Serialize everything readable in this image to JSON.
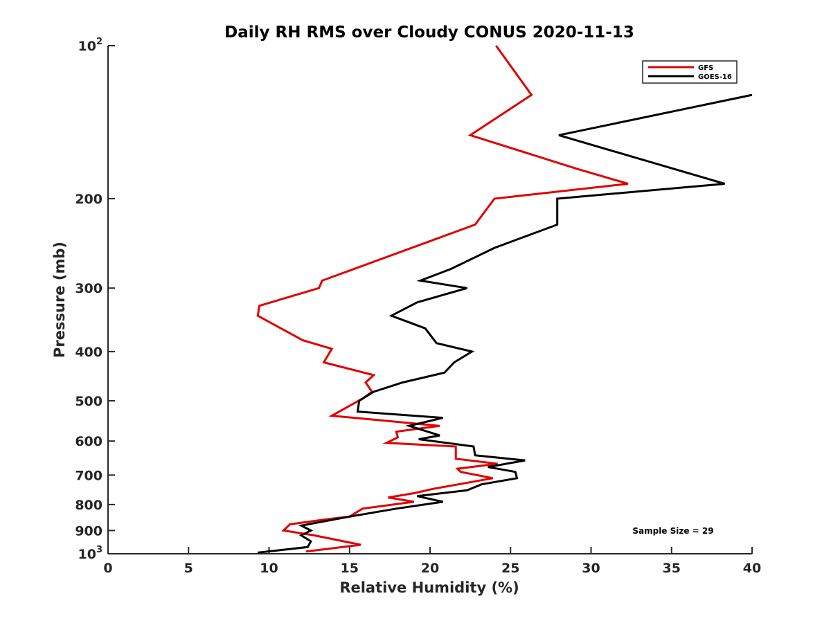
{
  "chart_data": {
    "type": "line",
    "title": "Daily RH RMS over Cloudy CONUS 2020-11-13",
    "xlabel": "Relative Humidity (%)",
    "ylabel": "Pressure (mb)",
    "xlim": [
      0,
      40
    ],
    "ylim": [
      100,
      1000
    ],
    "y_scale": "log",
    "y_reversed": true,
    "grid": false,
    "legend_position": "top-right",
    "x_ticks": [
      {
        "value": 0,
        "label": "0"
      },
      {
        "value": 5,
        "label": "5"
      },
      {
        "value": 10,
        "label": "10"
      },
      {
        "value": 15,
        "label": "15"
      },
      {
        "value": 20,
        "label": "20"
      },
      {
        "value": 25,
        "label": "25"
      },
      {
        "value": 30,
        "label": "30"
      },
      {
        "value": 35,
        "label": "35"
      },
      {
        "value": 40,
        "label": "40"
      }
    ],
    "y_ticks": [
      {
        "value": 100,
        "label": "10",
        "sup": "2"
      },
      {
        "value": 200,
        "label": "200",
        "sup": ""
      },
      {
        "value": 300,
        "label": "300",
        "sup": ""
      },
      {
        "value": 400,
        "label": "400",
        "sup": ""
      },
      {
        "value": 500,
        "label": "500",
        "sup": ""
      },
      {
        "value": 600,
        "label": "600",
        "sup": ""
      },
      {
        "value": 700,
        "label": "700",
        "sup": ""
      },
      {
        "value": 800,
        "label": "800",
        "sup": ""
      },
      {
        "value": 900,
        "label": "900",
        "sup": ""
      },
      {
        "value": 1000,
        "label": "10",
        "sup": "3"
      }
    ],
    "series": [
      {
        "name": "GFS",
        "color": "#e00000",
        "points": [
          [
            24.1,
            100
          ],
          [
            26.3,
            125
          ],
          [
            22.5,
            150
          ],
          [
            29.2,
            175
          ],
          [
            32.3,
            187
          ],
          [
            24.0,
            200
          ],
          [
            22.8,
            225
          ],
          [
            13.3,
            290
          ],
          [
            13.1,
            300
          ],
          [
            9.4,
            325
          ],
          [
            9.3,
            340
          ],
          [
            12.1,
            380
          ],
          [
            13.9,
            395
          ],
          [
            13.4,
            420
          ],
          [
            16.5,
            445
          ],
          [
            16.0,
            460
          ],
          [
            16.2,
            470
          ],
          [
            16.4,
            480
          ],
          [
            15.8,
            495
          ],
          [
            13.9,
            535
          ],
          [
            20.6,
            560
          ],
          [
            17.9,
            575
          ],
          [
            18.0,
            590
          ],
          [
            17.3,
            605
          ],
          [
            21.6,
            615
          ],
          [
            21.6,
            650
          ],
          [
            24.2,
            665
          ],
          [
            21.7,
            680
          ],
          [
            21.9,
            690
          ],
          [
            23.9,
            710
          ],
          [
            20.2,
            745
          ],
          [
            19.0,
            760
          ],
          [
            17.4,
            775
          ],
          [
            19.0,
            790
          ],
          [
            15.8,
            815
          ],
          [
            15.0,
            845
          ],
          [
            13.6,
            855
          ],
          [
            11.3,
            875
          ],
          [
            10.9,
            900
          ],
          [
            12.8,
            920
          ],
          [
            15.7,
            960
          ],
          [
            12.3,
            990
          ]
        ]
      },
      {
        "name": "GOES-16",
        "color": "#000000",
        "points": [
          [
            40.0,
            125
          ],
          [
            28.0,
            150
          ],
          [
            38.3,
            187
          ],
          [
            27.9,
            200
          ],
          [
            27.9,
            225
          ],
          [
            24.0,
            250
          ],
          [
            21.3,
            275
          ],
          [
            19.4,
            290
          ],
          [
            22.3,
            300
          ],
          [
            19.2,
            320
          ],
          [
            17.6,
            340
          ],
          [
            19.7,
            360
          ],
          [
            20.4,
            385
          ],
          [
            22.6,
            400
          ],
          [
            21.5,
            420
          ],
          [
            20.9,
            440
          ],
          [
            18.3,
            460
          ],
          [
            16.5,
            480
          ],
          [
            15.6,
            500
          ],
          [
            15.5,
            525
          ],
          [
            20.8,
            540
          ],
          [
            18.7,
            560
          ],
          [
            20.6,
            585
          ],
          [
            19.3,
            595
          ],
          [
            22.7,
            615
          ],
          [
            22.8,
            640
          ],
          [
            25.9,
            655
          ],
          [
            23.6,
            675
          ],
          [
            25.3,
            690
          ],
          [
            25.4,
            710
          ],
          [
            23.2,
            730
          ],
          [
            22.3,
            750
          ],
          [
            19.2,
            770
          ],
          [
            20.8,
            790
          ],
          [
            17.9,
            815
          ],
          [
            15.0,
            845
          ],
          [
            12.0,
            880
          ],
          [
            12.6,
            900
          ],
          [
            12.0,
            920
          ],
          [
            12.6,
            945
          ],
          [
            12.4,
            970
          ],
          [
            9.3,
            995
          ]
        ]
      }
    ],
    "legend": [
      {
        "label": "GFS",
        "color": "#e00000"
      },
      {
        "label": "GOES-16",
        "color": "#000000"
      }
    ],
    "annotations": [
      {
        "text": "Sample Size = 29"
      }
    ]
  }
}
